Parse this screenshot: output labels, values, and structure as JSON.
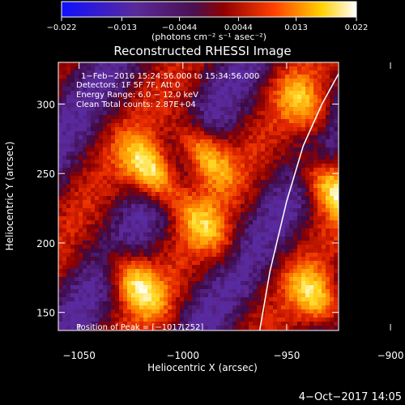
{
  "chart_data": {
    "type": "heatmap",
    "title": "Reconstructed RHESSI Image",
    "xlabel": "Heliocentric X (arcsec)",
    "ylabel": "Heliocentric Y (arcsec)",
    "xlim": [
      -1060,
      -925
    ],
    "ylim": [
      137,
      330
    ],
    "xticks": [
      -1050,
      -1000,
      -950,
      -900
    ],
    "xtick_labels": [
      "−1050",
      "−1000",
      "−950",
      "−900"
    ],
    "yticks": [
      150,
      200,
      250,
      300
    ],
    "ytick_labels": [
      "150",
      "200",
      "250",
      "300"
    ],
    "colorbar": {
      "range": [
        -0.022,
        0.022
      ],
      "ticks": [
        -0.022,
        -0.013,
        -0.0044,
        0.0044,
        0.013,
        0.022
      ],
      "tick_labels": [
        "−0.022",
        "−0.013",
        "−0.0044",
        "0.0044",
        "0.013",
        "0.022"
      ],
      "unit_label": "(photons cm⁻² s⁻¹ asec⁻²)",
      "colormap": "purple-blue-red-yellow-white"
    },
    "annotations": [
      "1−Feb−2016 15:24:56.000 to 15:34:56.000",
      "Detectors: 1F 5F 7F, Att 0",
      "Energy Range: 6.0 − 12.0 keV",
      "Clean    Total counts: 2.87E+04"
    ],
    "peak_label": "Position of Peak = [−1017,252]",
    "peak": [
      -1017,
      252
    ],
    "limb_curve": [
      [
        -963,
        137
      ],
      [
        -958,
        180
      ],
      [
        -950,
        230
      ],
      [
        -942,
        270
      ],
      [
        -933,
        300
      ],
      [
        -922,
        330
      ]
    ],
    "sources": [
      {
        "x": -1015,
        "y": 252,
        "value": 0.022
      },
      {
        "x": -990,
        "y": 264,
        "value": 0.018
      },
      {
        "x": -1022,
        "y": 170,
        "value": 0.018
      },
      {
        "x": -990,
        "y": 213,
        "value": 0.012
      },
      {
        "x": -930,
        "y": 240,
        "value": 0.016
      },
      {
        "x": -905,
        "y": 296,
        "value": 0.02
      },
      {
        "x": -912,
        "y": 225,
        "value": 0.014
      },
      {
        "x": -935,
        "y": 160,
        "value": 0.016
      },
      {
        "x": -942,
        "y": 300,
        "value": 0.012
      }
    ],
    "grid": false
  },
  "timestamp": "4−Oct−2017 14:05"
}
